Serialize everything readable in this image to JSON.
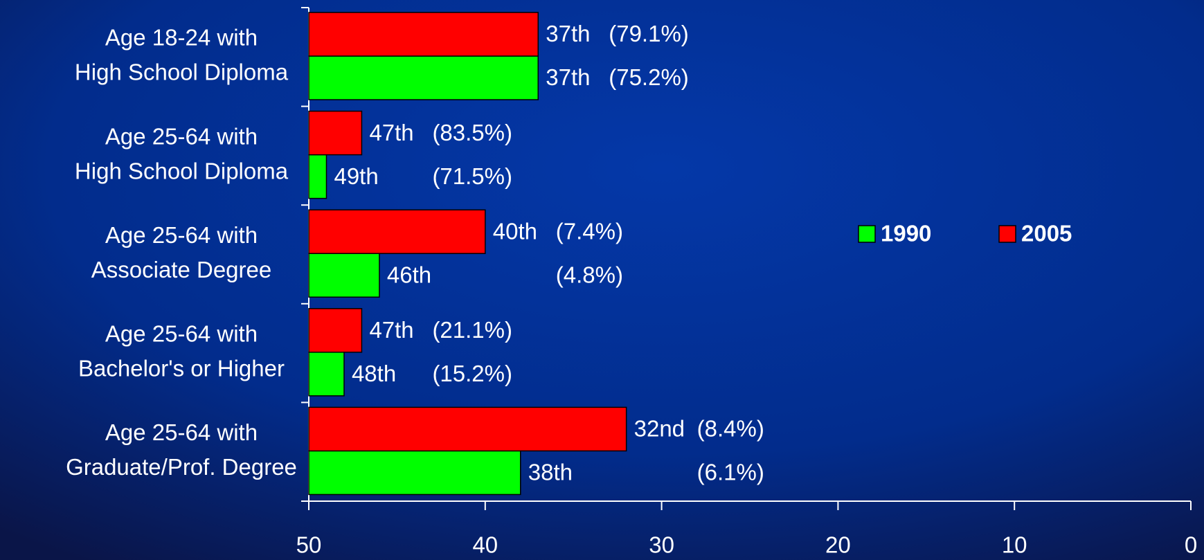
{
  "chart_data": {
    "type": "bar",
    "categories": [
      [
        "Age 18-24 with",
        "High School Diploma"
      ],
      [
        "Age 25-64 with",
        "High School Diploma"
      ],
      [
        "Age 25-64 with",
        "Associate Degree"
      ],
      [
        "Age 25-64 with",
        "Bachelor's or Higher"
      ],
      [
        "Age 25-64 with",
        "Graduate/Prof. Degree"
      ]
    ],
    "series": [
      {
        "name": "1990",
        "color": "#00ff00",
        "values": [
          37,
          49,
          46,
          48,
          38
        ],
        "value_labels": [
          "37th",
          "49th",
          "46th",
          "48th",
          "38th"
        ],
        "annotations": [
          "(75.2%)",
          "(71.5%)",
          "(4.8%)",
          "(15.2%)",
          "(6.1%)"
        ]
      },
      {
        "name": "2005",
        "color": "#ff0000",
        "values": [
          37,
          47,
          40,
          47,
          32
        ],
        "value_labels": [
          "37th",
          "47th",
          "40th",
          "47th",
          "32nd"
        ],
        "annotations": [
          "(79.1%)",
          "(83.5%)",
          "(7.4%)",
          "(21.1%)",
          "(8.4%)"
        ]
      }
    ],
    "xlim": [
      50,
      0
    ],
    "xticks": [
      50,
      40,
      30,
      20,
      10,
      0
    ],
    "legend": "right"
  }
}
